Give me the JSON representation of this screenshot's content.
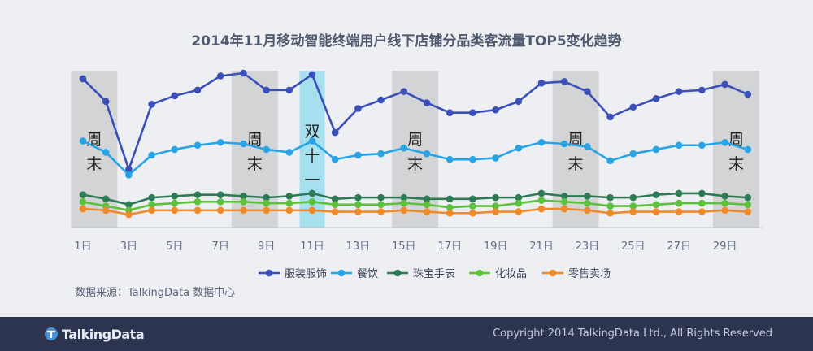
{
  "chart_data": {
    "type": "line",
    "title": "2014年11月移动智能终端用户线下店铺分品类客流量TOP5变化趋势",
    "x": [
      1,
      2,
      3,
      4,
      5,
      6,
      7,
      8,
      9,
      10,
      11,
      12,
      13,
      14,
      15,
      16,
      17,
      18,
      19,
      20,
      21,
      22,
      23,
      24,
      25,
      26,
      27,
      28,
      29,
      30
    ],
    "x_tick_labels": [
      "1日",
      "3日",
      "5日",
      "7日",
      "9日",
      "11日",
      "13日",
      "15日",
      "17日",
      "19日",
      "21日",
      "23日",
      "25日",
      "27日",
      "29日"
    ],
    "x_tick_values": [
      1,
      3,
      5,
      7,
      9,
      11,
      13,
      15,
      17,
      19,
      21,
      23,
      25,
      27,
      29
    ],
    "grid": false,
    "legend_position": "bottom",
    "series": [
      {
        "name": "服装服饰",
        "color": "#3b4fb8",
        "values": [
          96,
          80,
          32,
          78,
          84,
          88,
          98,
          100,
          88,
          88,
          99,
          58,
          75,
          81,
          87,
          79,
          72,
          72,
          74,
          80,
          93,
          94,
          87,
          69,
          76,
          82,
          87,
          88,
          92,
          85
        ]
      },
      {
        "name": "餐饮",
        "color": "#28a3e3",
        "values": [
          52,
          44,
          28,
          42,
          46,
          49,
          51,
          50,
          46,
          44,
          52,
          39,
          42,
          43,
          47,
          43,
          39,
          39,
          40,
          47,
          51,
          50,
          48,
          38,
          43,
          46,
          49,
          49,
          51,
          46
        ]
      },
      {
        "name": "珠宝手表",
        "color": "#2e7a55",
        "values": [
          14,
          11,
          7,
          12,
          13,
          14,
          14,
          13,
          12,
          13,
          15,
          11,
          12,
          12,
          12,
          11,
          11,
          11,
          12,
          12,
          15,
          13,
          13,
          12,
          12,
          14,
          15,
          15,
          13,
          12
        ]
      },
      {
        "name": "化妆品",
        "color": "#5cc13c",
        "values": [
          9,
          6,
          3,
          7,
          8,
          9,
          9,
          9,
          8,
          8,
          9,
          7,
          7,
          7,
          8,
          7,
          5,
          6,
          6,
          8,
          10,
          9,
          8,
          6,
          6,
          7,
          8,
          8,
          8,
          7
        ]
      },
      {
        "name": "零售卖场",
        "color": "#ef8a2b",
        "values": [
          4,
          3,
          0,
          3,
          3,
          3,
          3,
          3,
          3,
          3,
          3,
          2,
          2,
          2,
          3,
          2,
          1,
          1,
          2,
          2,
          4,
          4,
          3,
          1,
          2,
          2,
          2,
          2,
          3,
          2
        ]
      }
    ],
    "shaded_periods": [
      {
        "type": "weekend",
        "start": 1,
        "end": 2,
        "label_chars": [
          "周",
          "末"
        ]
      },
      {
        "type": "weekend",
        "start": 8,
        "end": 9,
        "label_chars": [
          "周",
          "末"
        ]
      },
      {
        "type": "holiday",
        "start": 11,
        "end": 11,
        "label_chars": [
          "双",
          "十",
          "一"
        ]
      },
      {
        "type": "weekend",
        "start": 15,
        "end": 16,
        "label_chars": [
          "周",
          "末"
        ]
      },
      {
        "type": "weekend",
        "start": 22,
        "end": 23,
        "label_chars": [
          "周",
          "末"
        ]
      },
      {
        "type": "weekend",
        "start": 29,
        "end": 30,
        "label_chars": [
          "周",
          "末"
        ]
      }
    ],
    "colors": {
      "weekend_band": "#d3d4d6",
      "holiday_band": "#a6dfee",
      "axis": "#bfc3cc"
    }
  },
  "source_note": "数据来源：TalkingData 数据中心",
  "footer": {
    "brand": "TalkingData",
    "copyright": "Copyright 2014 TalkingData Ltd., All Rights Reserved"
  }
}
